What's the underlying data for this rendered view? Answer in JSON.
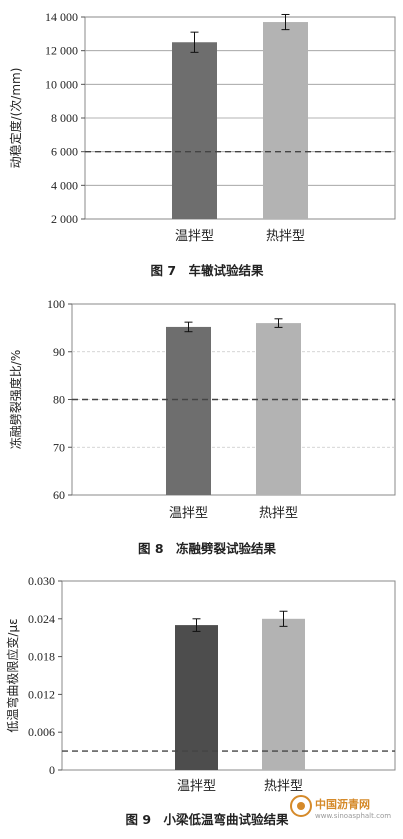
{
  "chart_data": [
    {
      "type": "bar",
      "title": "",
      "caption": "图 7　车辙试验结果",
      "categories": [
        "温拌型",
        "热拌型"
      ],
      "values": [
        12500,
        13700
      ],
      "errors": [
        600,
        450
      ],
      "ylabel": "动稳定度/(次/mm)",
      "ylim": [
        2000,
        14000
      ],
      "yticks": [
        2000,
        4000,
        6000,
        8000,
        10000,
        12000,
        14000
      ],
      "ytick_labels": [
        "2 000",
        "4 000",
        "6 000",
        "8 000",
        "10 000",
        "12 000",
        "14 000"
      ],
      "reference_line": 6000,
      "grid": true,
      "colors": [
        "#6e6e6e",
        "#b3b3b3"
      ]
    },
    {
      "type": "bar",
      "title": "",
      "caption": "图 8　冻融劈裂试验结果",
      "categories": [
        "温拌型",
        "热拌型"
      ],
      "values": [
        95.2,
        96.0
      ],
      "errors": [
        1.0,
        0.9
      ],
      "ylabel": "冻融劈裂强度比/%",
      "ylim": [
        60,
        100
      ],
      "yticks": [
        60,
        70,
        80,
        90,
        100
      ],
      "ytick_labels": [
        "60",
        "70",
        "80",
        "90",
        "100"
      ],
      "reference_line": 80,
      "grid": true,
      "colors": [
        "#6e6e6e",
        "#b3b3b3"
      ]
    },
    {
      "type": "bar",
      "title": "",
      "caption": "图 9　小梁低温弯曲试验结果",
      "categories": [
        "温拌型",
        "热拌型"
      ],
      "values": [
        0.023,
        0.024
      ],
      "errors": [
        0.001,
        0.0012
      ],
      "ylabel": "低温弯曲极限应变/με",
      "ylim": [
        0,
        0.03
      ],
      "yticks": [
        0,
        0.006,
        0.012,
        0.018,
        0.024,
        0.03
      ],
      "ytick_labels": [
        "0",
        "0.006",
        "0.012",
        "0.018",
        "0.024",
        "0.030"
      ],
      "reference_line": 0.003,
      "grid": false,
      "colors": [
        "#4d4d4d",
        "#b3b3b3"
      ]
    }
  ],
  "watermark": {
    "name": "中国沥青网",
    "url": "www.sinoasphalt.com"
  }
}
